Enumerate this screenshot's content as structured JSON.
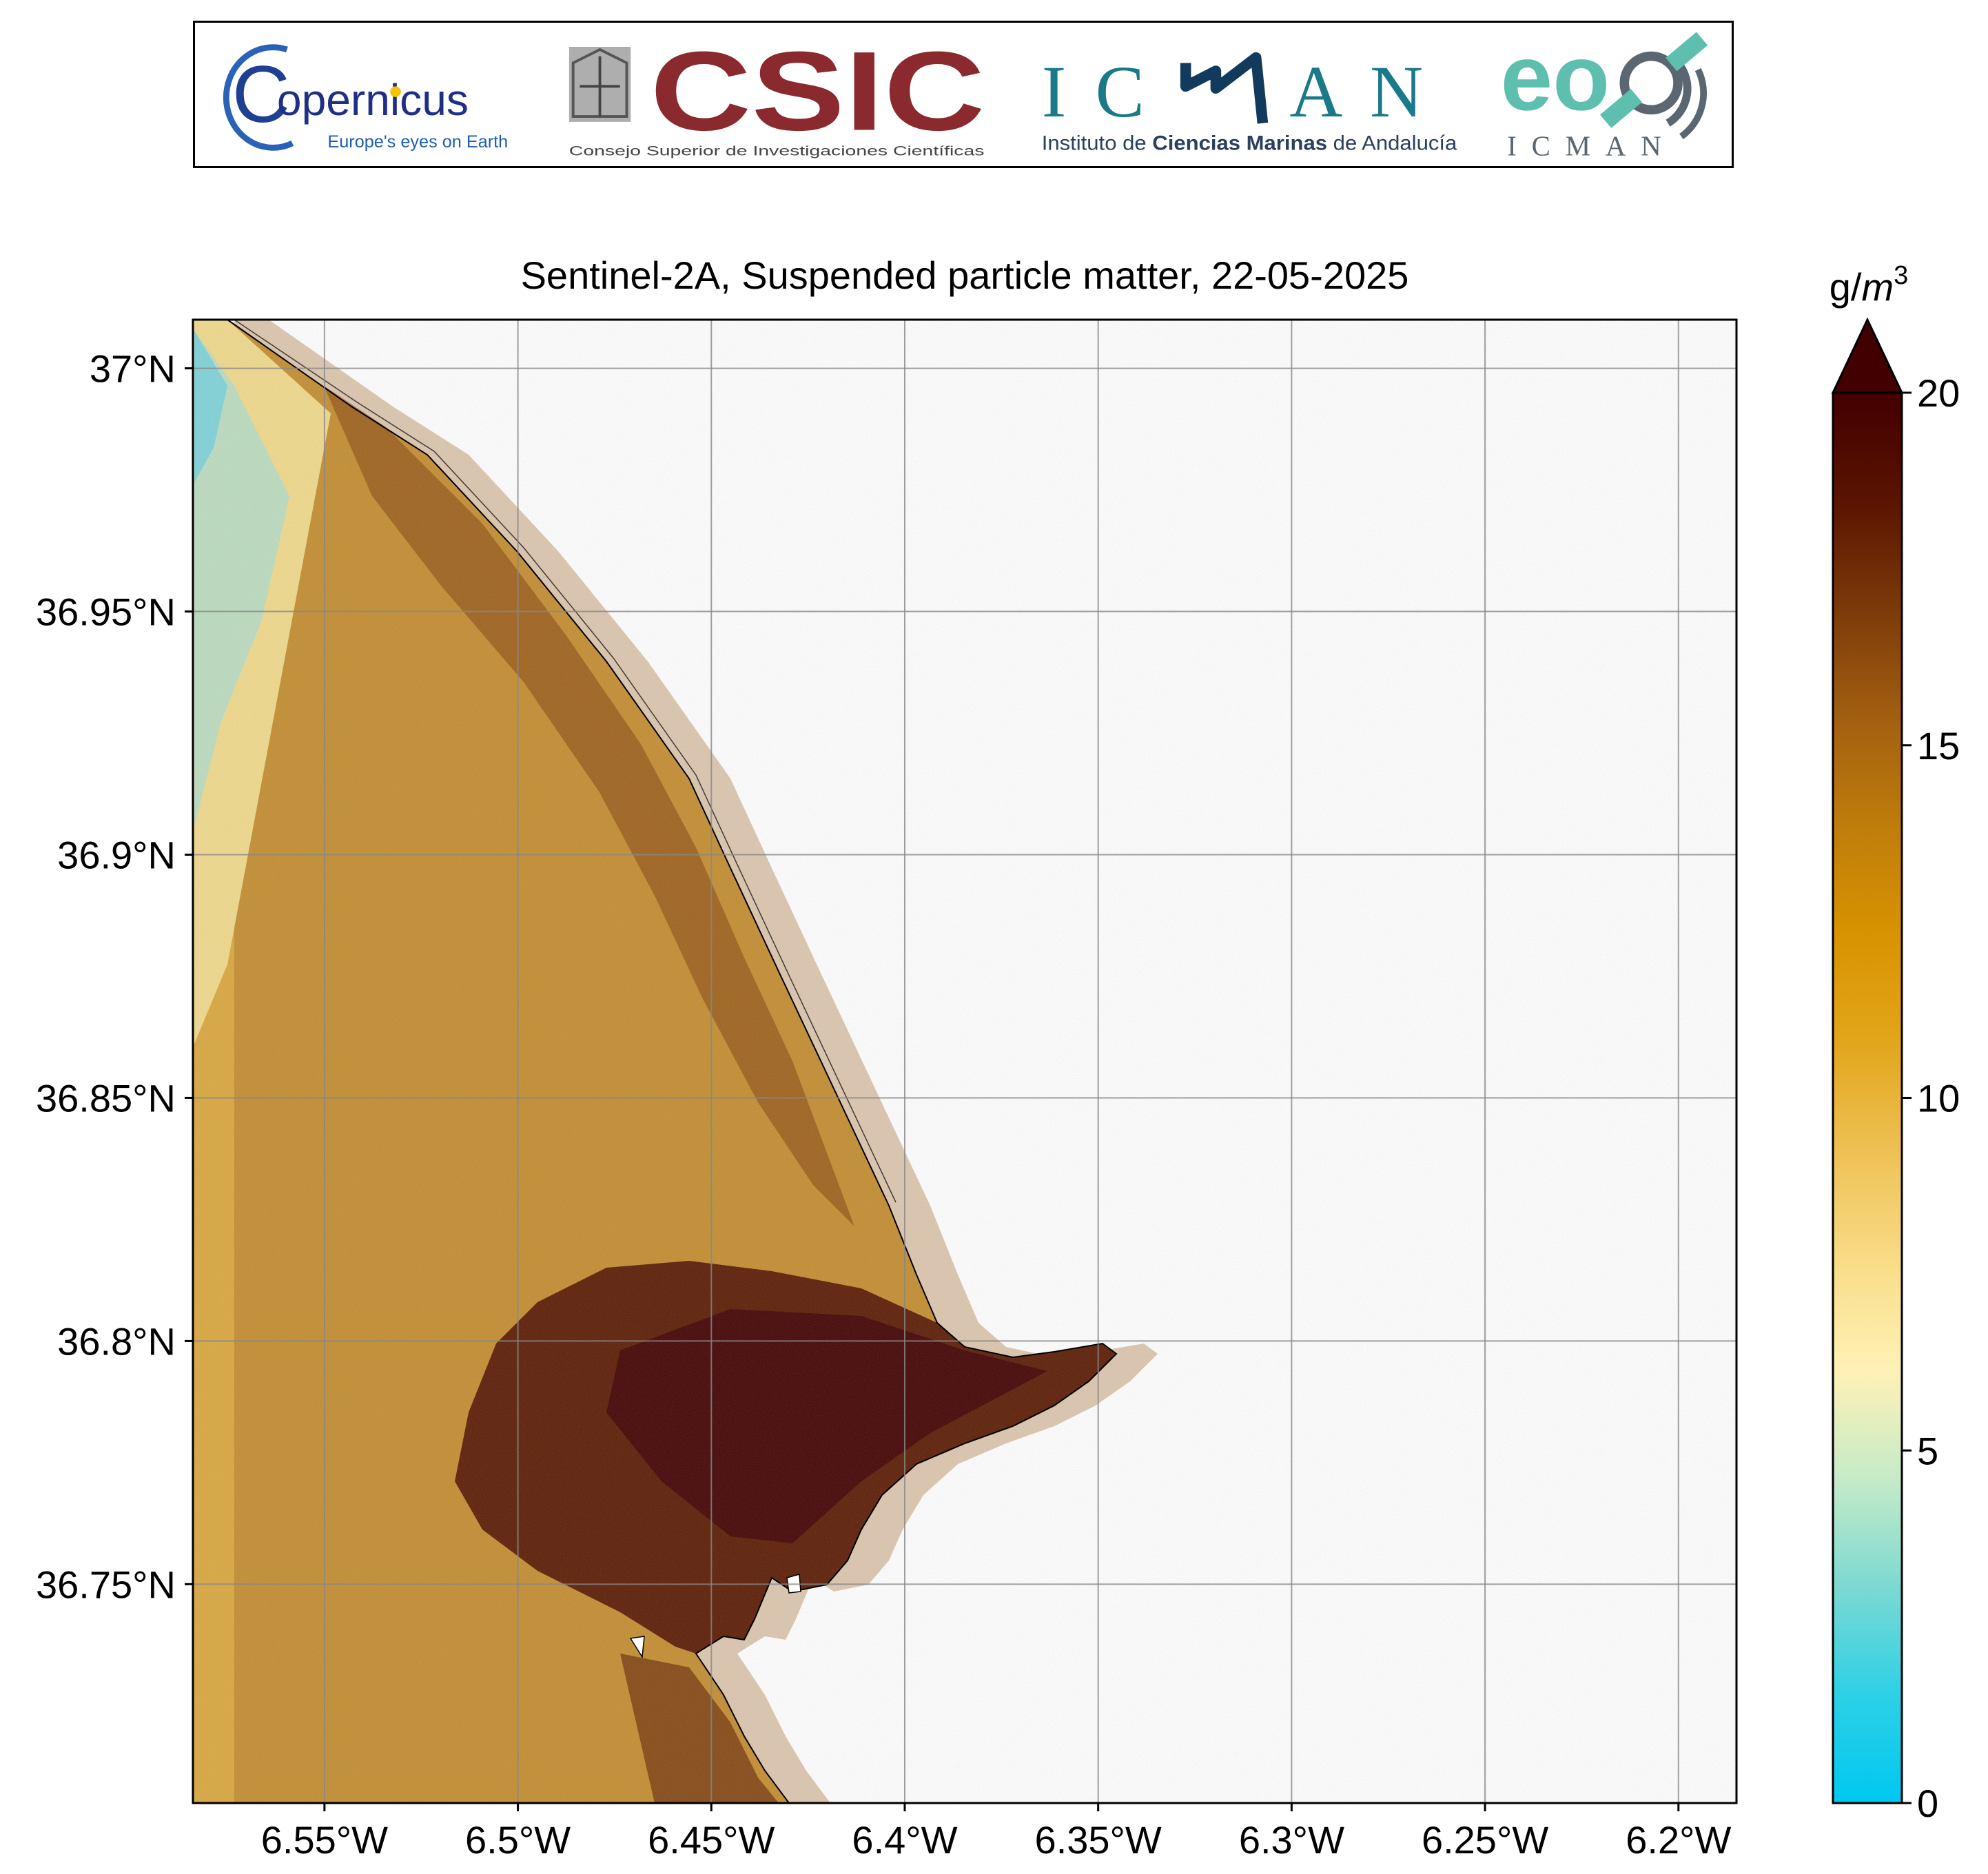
{
  "logos": {
    "copernicus": {
      "name": "opernicus",
      "initial": "C",
      "tagline": "Europe's eyes on Earth"
    },
    "csic": {
      "name": "CSIC",
      "subtitle": "Consejo Superior de Investigaciones Científicas"
    },
    "icman": {
      "letters": [
        "I",
        "C",
        "A",
        "N"
      ],
      "subtitle_prefix": "Instituto de ",
      "subtitle_bold": "Ciencias Marinas",
      "subtitle_suffix": " de Andalucía"
    },
    "eo": {
      "letters": "eo",
      "subtitle": "ICMAN"
    }
  },
  "map": {
    "title": "Sentinel-2A, Suspended particle matter, 22-05-2025",
    "lon_ticks": [
      "6.55°W",
      "6.5°W",
      "6.45°W",
      "6.4°W",
      "6.35°W",
      "6.3°W",
      "6.25°W",
      "6.2°W"
    ],
    "lon_values": [
      -6.55,
      -6.5,
      -6.45,
      -6.4,
      -6.35,
      -6.3,
      -6.25,
      -6.2
    ],
    "lat_ticks": [
      "37°N",
      "36.95°N",
      "36.9°N",
      "36.85°N",
      "36.8°N",
      "36.75°N"
    ],
    "lat_values": [
      37.0,
      36.95,
      36.9,
      36.85,
      36.8,
      36.75
    ],
    "extent": {
      "lon_min": -6.584,
      "lon_max": -6.185,
      "lat_min": 36.705,
      "lat_max": 37.01
    },
    "gridlines": true
  },
  "colorbar": {
    "unit_base": "g/",
    "unit_var": "m",
    "unit_exp": "3",
    "ticks": [
      "0",
      "5",
      "10",
      "15",
      "20"
    ],
    "tick_values": [
      0,
      5,
      10,
      15,
      20
    ],
    "min": 0,
    "max": 20,
    "extend": "max",
    "colors": [
      "#00c8f0",
      "#2ed0e6",
      "#7dd9d2",
      "#c7ebc8",
      "#fff1b6",
      "#f8dc86",
      "#eec155",
      "#e2a61c",
      "#d89300",
      "#bf7d0c",
      "#a35f10",
      "#7c3a0a",
      "#5a1400",
      "#420000"
    ]
  },
  "legend_colors": {
    "land": "#ffffff",
    "coastline": "#000000",
    "grid": "#888888"
  }
}
